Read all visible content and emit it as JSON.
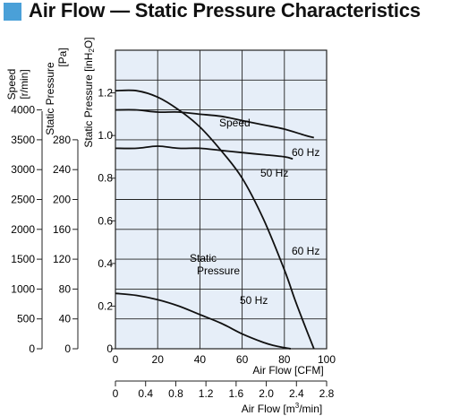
{
  "title": "Air Flow — Static Pressure Characteristics",
  "colors": {
    "title_marker": "#4aa0d8",
    "plot_background": "#e6eef8",
    "curve": "#111111",
    "grid": "#222222"
  },
  "chart_data": {
    "type": "line",
    "title": "Air Flow — Static Pressure Characteristics",
    "x_axis": {
      "label": "Air Flow [CFM]",
      "range": [
        0,
        100
      ],
      "ticks": [
        0,
        20,
        40,
        60,
        80,
        100
      ],
      "grid": true
    },
    "x_axis_secondary": {
      "label_prefix": "Air Flow [m",
      "label_sup": "3",
      "label_suffix": "/min]",
      "range": [
        0,
        2.8
      ],
      "ticks": [
        "0",
        "0.4",
        "0.8",
        "1.2",
        "1.6",
        "2.0",
        "2.4",
        "2.8"
      ]
    },
    "y_axis": {
      "label_prefix": "Static Pressure [inH",
      "label_sub": "2",
      "label_suffix": "O]",
      "range": [
        0,
        1.4
      ],
      "ticks": [
        "0",
        "0.2",
        "0.4",
        "0.6",
        "0.8",
        "1.0",
        "1.2"
      ],
      "grid": true
    },
    "y_axis_pa": {
      "label_line1": "Static Pressure",
      "label_line2": "[Pa]",
      "ticks": [
        "0",
        "40",
        "80",
        "120",
        "160",
        "200",
        "240",
        "280"
      ]
    },
    "y_axis_speed": {
      "label_line1": "Speed",
      "label_line2": "[r/min]",
      "ticks": [
        "0",
        "500",
        "1000",
        "1500",
        "2000",
        "2500",
        "3000",
        "3500",
        "4000"
      ]
    },
    "series": [
      {
        "group": "Static Pressure",
        "name": "60 Hz",
        "x": [
          0,
          10,
          20,
          30,
          40,
          50,
          60,
          70,
          80,
          85,
          90,
          94
        ],
        "y": [
          1.21,
          1.21,
          1.18,
          1.12,
          1.04,
          0.93,
          0.8,
          0.61,
          0.37,
          0.23,
          0.1,
          0
        ]
      },
      {
        "group": "Static Pressure",
        "name": "50 Hz",
        "x": [
          0,
          10,
          20,
          30,
          40,
          50,
          60,
          70,
          75,
          80,
          83
        ],
        "y": [
          0.26,
          0.25,
          0.23,
          0.2,
          0.16,
          0.12,
          0.07,
          0.03,
          0.015,
          0.005,
          0
        ]
      },
      {
        "group": "Speed",
        "name": "60 Hz",
        "x": [
          0,
          10,
          20,
          30,
          40,
          50,
          60,
          70,
          80,
          90,
          94
        ],
        "y": [
          1.12,
          1.12,
          1.11,
          1.11,
          1.1,
          1.09,
          1.07,
          1.05,
          1.03,
          1.0,
          0.99
        ]
      },
      {
        "group": "Speed",
        "name": "50 Hz",
        "x": [
          0,
          10,
          20,
          30,
          40,
          50,
          60,
          70,
          80,
          84
        ],
        "y": [
          0.94,
          0.94,
          0.95,
          0.94,
          0.94,
          0.93,
          0.92,
          0.91,
          0.9,
          0.89
        ]
      }
    ],
    "annotations": {
      "speed_label": "Speed",
      "static_label_line1": "Static",
      "static_label_line2": "Pressure",
      "speed_60": "60 Hz",
      "speed_50": "50 Hz",
      "pressure_60": "60 Hz",
      "pressure_50": "50 Hz"
    }
  }
}
